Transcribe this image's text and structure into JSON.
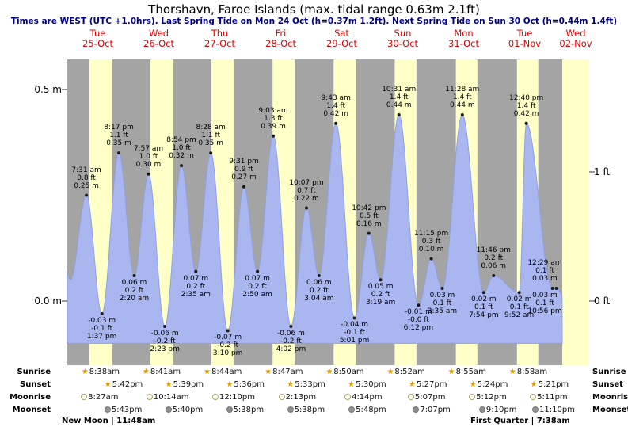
{
  "header": {
    "title": "Thorshavn, Faroe Islands (max. tidal range 0.63m 2.1ft)",
    "subtitle": "Times are WEST (UTC +1.0hrs). Last Spring Tide on Mon 24 Oct (h=0.37m 1.2ft). Next Spring Tide on Sun 30 Oct (h=0.44m 1.4ft)"
  },
  "colors": {
    "night_band": "#a4a4a4",
    "day_band": "#ffffc8",
    "tide_fill": "#a9b6f0",
    "tide_stroke": "#8fa0e0",
    "day_label": "#e00000",
    "subtitle": "#000080",
    "star": "#dd9900",
    "moonrise_fill": "#fffef2",
    "moonrise_border": "#a8a265",
    "moonset_fill": "#8f8f8f",
    "moonset_border": "#7a7a7a"
  },
  "chart_data": {
    "type": "area",
    "title": "Thorshavn, Faroe Islands (max. tidal range 0.63m 2.1ft)",
    "ylabel_left": "m",
    "ylabel_right": "ft",
    "ylim_m": [
      -0.15,
      0.57
    ],
    "grid": false,
    "y_axis": {
      "left_ticks": [
        {
          "label": "0.5 m",
          "m": 0.5
        },
        {
          "label": "0.0 m",
          "m": 0.0
        }
      ],
      "right_ticks": [
        {
          "label": "1 ft",
          "m": 0.3048
        },
        {
          "label": "0 ft",
          "m": 0.0
        }
      ]
    },
    "x_axis": {
      "days": [
        {
          "name": "Tue",
          "date": "25-Oct"
        },
        {
          "name": "Wed",
          "date": "26-Oct"
        },
        {
          "name": "Thu",
          "date": "27-Oct"
        },
        {
          "name": "Fri",
          "date": "28-Oct"
        },
        {
          "name": "Sat",
          "date": "29-Oct"
        },
        {
          "name": "Sun",
          "date": "30-Oct"
        },
        {
          "name": "Mon",
          "date": "31-Oct"
        },
        {
          "name": "Tue",
          "date": "01-Nov"
        },
        {
          "name": "Wed",
          "date": "02-Nov"
        }
      ]
    },
    "series": [
      {
        "name": "Tide height",
        "extremes": [
          {
            "day": 0,
            "time": "7:31 am",
            "type": "high",
            "m": 0.25,
            "m_label": "0.25 m",
            "ft_label": "0.8 ft"
          },
          {
            "day": 0,
            "time": "1:37 pm",
            "type": "low",
            "m": -0.03,
            "m_label": "-0.03 m",
            "ft_label": "-0.1 ft"
          },
          {
            "day": 0,
            "time": "8:17 pm",
            "type": "high",
            "m": 0.35,
            "m_label": "0.35 m",
            "ft_label": "1.1 ft"
          },
          {
            "day": 1,
            "time": "2:20 am",
            "type": "low",
            "m": 0.06,
            "m_label": "0.06 m",
            "ft_label": "0.2 ft"
          },
          {
            "day": 1,
            "time": "7:57 am",
            "type": "high",
            "m": 0.3,
            "m_label": "0.30 m",
            "ft_label": "1.0 ft"
          },
          {
            "day": 1,
            "time": "2:23 pm",
            "type": "low",
            "m": -0.06,
            "m_label": "-0.06 m",
            "ft_label": "-0.2 ft"
          },
          {
            "day": 1,
            "time": "8:54 pm",
            "type": "high",
            "m": 0.32,
            "m_label": "0.32 m",
            "ft_label": "1.0 ft"
          },
          {
            "day": 2,
            "time": "2:35 am",
            "type": "low",
            "m": 0.07,
            "m_label": "0.07 m",
            "ft_label": "0.2 ft"
          },
          {
            "day": 2,
            "time": "8:28 am",
            "type": "high",
            "m": 0.35,
            "m_label": "0.35 m",
            "ft_label": "1.1 ft"
          },
          {
            "day": 2,
            "time": "3:10 pm",
            "type": "low",
            "m": -0.07,
            "m_label": "-0.07 m",
            "ft_label": "-0.2 ft"
          },
          {
            "day": 2,
            "time": "9:31 pm",
            "type": "high",
            "m": 0.27,
            "m_label": "0.27 m",
            "ft_label": "0.9 ft"
          },
          {
            "day": 3,
            "time": "2:50 am",
            "type": "low",
            "m": 0.07,
            "m_label": "0.07 m",
            "ft_label": "0.2 ft"
          },
          {
            "day": 3,
            "time": "9:03 am",
            "type": "high",
            "m": 0.39,
            "m_label": "0.39 m",
            "ft_label": "1.3 ft"
          },
          {
            "day": 3,
            "time": "4:02 pm",
            "type": "low",
            "m": -0.06,
            "m_label": "-0.06 m",
            "ft_label": "-0.2 ft"
          },
          {
            "day": 3,
            "time": "10:07 pm",
            "type": "high",
            "m": 0.22,
            "m_label": "0.22 m",
            "ft_label": "0.7 ft"
          },
          {
            "day": 4,
            "time": "3:04 am",
            "type": "low",
            "m": 0.06,
            "m_label": "0.06 m",
            "ft_label": "0.2 ft"
          },
          {
            "day": 4,
            "time": "9:43 am",
            "type": "high",
            "m": 0.42,
            "m_label": "0.42 m",
            "ft_label": "1.4 ft"
          },
          {
            "day": 4,
            "time": "5:01 pm",
            "type": "low",
            "m": -0.04,
            "m_label": "-0.04 m",
            "ft_label": "-0.1 ft"
          },
          {
            "day": 4,
            "time": "10:42 pm",
            "type": "high",
            "m": 0.16,
            "m_label": "0.16 m",
            "ft_label": "0.5 ft"
          },
          {
            "day": 5,
            "time": "3:19 am",
            "type": "low",
            "m": 0.05,
            "m_label": "0.05 m",
            "ft_label": "0.2 ft"
          },
          {
            "day": 5,
            "time": "10:31 am",
            "type": "high",
            "m": 0.44,
            "m_label": "0.44 m",
            "ft_label": "1.4 ft"
          },
          {
            "day": 5,
            "time": "6:12 pm",
            "type": "low",
            "m": -0.01,
            "m_label": "-0.01 m",
            "ft_label": "-0.0 ft"
          },
          {
            "day": 5,
            "time": "11:15 pm",
            "type": "high",
            "m": 0.1,
            "m_label": "0.10 m",
            "ft_label": "0.3 ft"
          },
          {
            "day": 6,
            "time": "3:35 am",
            "type": "low",
            "m": 0.03,
            "m_label": "0.03 m",
            "ft_label": "0.1 ft"
          },
          {
            "day": 6,
            "time": "11:28 am",
            "type": "high",
            "m": 0.44,
            "m_label": "0.44 m",
            "ft_label": "1.4 ft"
          },
          {
            "day": 6,
            "time": "7:54 pm",
            "type": "low",
            "m": 0.02,
            "m_label": "0.02 m",
            "ft_label": "0.1 ft"
          },
          {
            "day": 6,
            "time": "11:46 pm",
            "type": "high",
            "m": 0.06,
            "m_label": "0.06 m",
            "ft_label": "0.2 ft"
          },
          {
            "day": 7,
            "time": "9:52 am",
            "type": "low",
            "m": 0.02,
            "m_label": "0.02 m",
            "ft_label": "0.1 ft"
          },
          {
            "day": 7,
            "time": "12:40 pm",
            "type": "high",
            "m": 0.42,
            "m_label": "0.42 m",
            "ft_label": "1.4 ft"
          },
          {
            "day": 7,
            "time": "10:56 pm",
            "type": "low",
            "m": 0.03,
            "m_label": "0.03 m",
            "ft_label": "0.1 ft"
          },
          {
            "day": 8,
            "time": "12:29 am",
            "type": "high",
            "m": 0.03,
            "m_label": "0.03 m",
            "ft_label": "0.1 ft"
          }
        ]
      }
    ]
  },
  "almanac": {
    "row_labels": {
      "sunrise": "Sunrise",
      "sunset": "Sunset",
      "moonrise": "Moonrise",
      "moonset": "Moonset"
    },
    "days": [
      {
        "sunrise": "8:38am",
        "sunset": "5:42pm",
        "moonrise": "8:27am",
        "moonset": "5:43pm"
      },
      {
        "sunrise": "8:41am",
        "sunset": "5:39pm",
        "moonrise": "10:14am",
        "moonset": "5:40pm"
      },
      {
        "sunrise": "8:44am",
        "sunset": "5:36pm",
        "moonrise": "12:10pm",
        "moonset": "5:38pm"
      },
      {
        "sunrise": "8:47am",
        "sunset": "5:33pm",
        "moonrise": "2:13pm",
        "moonset": "5:38pm"
      },
      {
        "sunrise": "8:50am",
        "sunset": "5:30pm",
        "moonrise": "4:14pm",
        "moonset": "5:48pm"
      },
      {
        "sunrise": "8:52am",
        "sunset": "5:27pm",
        "moonrise": "5:07pm",
        "moonset": "7:07pm"
      },
      {
        "sunrise": "8:55am",
        "sunset": "5:24pm",
        "moonrise": "5:12pm",
        "moonset": "9:10pm"
      },
      {
        "sunrise": "8:58am",
        "sunset": "5:21pm",
        "moonrise": "5:11pm",
        "moonset": "11:10pm"
      }
    ],
    "phases": [
      {
        "label": "New Moon | 11:48am"
      },
      {
        "label": "First Quarter | 7:38am"
      }
    ]
  }
}
